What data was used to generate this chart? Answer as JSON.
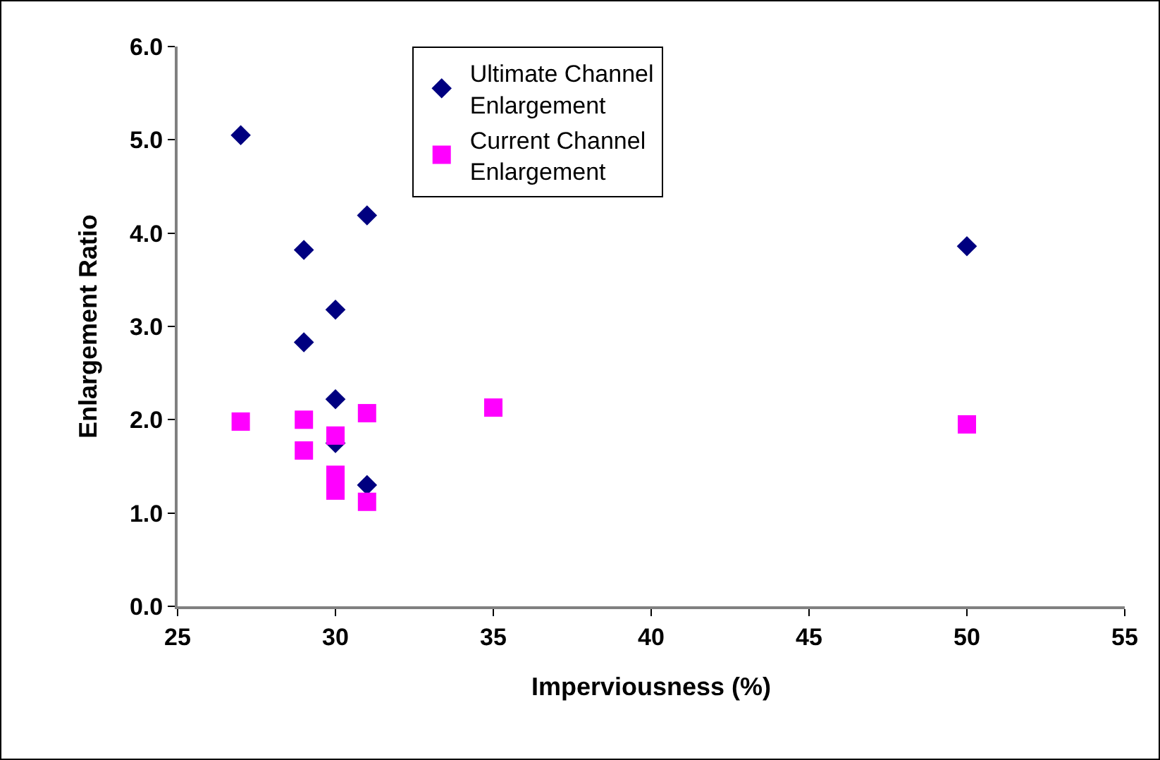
{
  "chart_data": {
    "type": "scatter",
    "xlabel": "Imperviousness (%)",
    "ylabel": "Enlargement Ratio",
    "xlim": [
      25,
      55
    ],
    "xticks": [
      25,
      30,
      35,
      40,
      45,
      50,
      55
    ],
    "ylim": [
      0,
      6
    ],
    "yticks": [
      {
        "value": 0,
        "label": "0.0"
      },
      {
        "value": 1,
        "label": "1.0"
      },
      {
        "value": 2,
        "label": "2.0"
      },
      {
        "value": 3,
        "label": "3.0"
      },
      {
        "value": 4,
        "label": "4.0"
      },
      {
        "value": 5,
        "label": "5.0"
      },
      {
        "value": 6,
        "label": "6.0"
      }
    ],
    "grid": false,
    "legend": "top",
    "series": [
      {
        "name": "Ultimate Channel Enlargement",
        "color": "#000080",
        "marker": "diamond",
        "x": [
          27,
          29,
          29,
          30,
          30,
          30,
          31,
          31,
          50
        ],
        "values": [
          5.05,
          3.82,
          2.83,
          3.18,
          2.22,
          1.75,
          4.19,
          1.3,
          3.86
        ]
      },
      {
        "name": "Current Channel Enlargement",
        "color": "#ff00ff",
        "marker": "square",
        "x": [
          27,
          29,
          29,
          30,
          30,
          30,
          31,
          31,
          35,
          50
        ],
        "values": [
          1.98,
          2.0,
          1.67,
          1.83,
          1.41,
          1.24,
          2.07,
          1.12,
          2.13,
          1.95
        ]
      }
    ]
  }
}
